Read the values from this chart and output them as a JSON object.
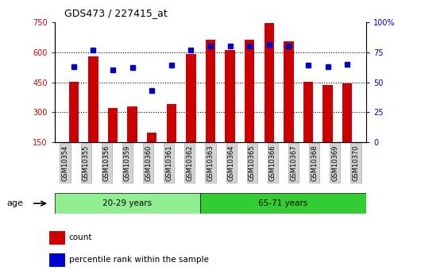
{
  "title": "GDS473 / 227415_at",
  "categories": [
    "GSM10354",
    "GSM10355",
    "GSM10356",
    "GSM10359",
    "GSM10360",
    "GSM10361",
    "GSM10362",
    "GSM10363",
    "GSM10364",
    "GSM10365",
    "GSM10366",
    "GSM10367",
    "GSM10368",
    "GSM10369",
    "GSM10370"
  ],
  "counts": [
    450,
    580,
    320,
    330,
    200,
    340,
    590,
    660,
    610,
    660,
    745,
    655,
    450,
    435,
    445
  ],
  "percentiles": [
    63,
    77,
    60,
    62,
    43,
    64,
    77,
    80,
    80,
    80,
    81,
    80,
    64,
    63,
    65
  ],
  "group1_label": "20-29 years",
  "group1_count": 7,
  "group2_label": "65-71 years",
  "group2_count": 8,
  "age_label": "age",
  "bar_color": "#cc0000",
  "dot_color": "#0000cc",
  "ylim_left": [
    150,
    750
  ],
  "ylim_right": [
    0,
    100
  ],
  "yticks_left": [
    150,
    300,
    450,
    600,
    750
  ],
  "yticks_right": [
    0,
    25,
    50,
    75,
    100
  ],
  "yticklabels_right": [
    "0",
    "25",
    "50",
    "75",
    "100%"
  ],
  "legend_count": "count",
  "legend_pct": "percentile rank within the sample",
  "group1_bg": "#90ee90",
  "group2_bg": "#33cc33",
  "plot_bg": "#ffffff",
  "gridline_ticks": [
    300,
    450,
    600
  ],
  "bar_width": 0.5
}
